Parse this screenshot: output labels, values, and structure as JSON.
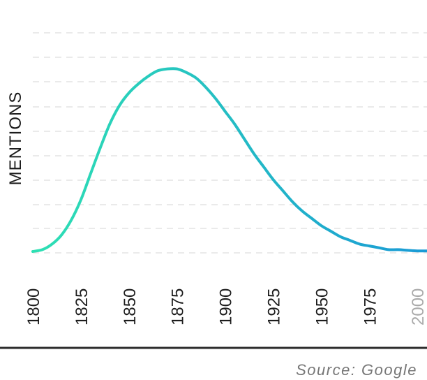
{
  "chart_data": {
    "type": "line",
    "ylabel": "MENTIONS",
    "xlabel": "",
    "source": "Source: Google",
    "xlim": [
      1800,
      2005
    ],
    "ylim": [
      0,
      100
    ],
    "x_ticks": [
      1800,
      1825,
      1850,
      1875,
      1900,
      1925,
      1950,
      1975,
      2000
    ],
    "muted_ticks": [
      2000
    ],
    "grid": true,
    "series": [
      {
        "x": [
          1800,
          1805,
          1810,
          1815,
          1820,
          1825,
          1830,
          1835,
          1840,
          1845,
          1850,
          1855,
          1860,
          1865,
          1870,
          1875,
          1880,
          1885,
          1890,
          1895,
          1900,
          1905,
          1910,
          1915,
          1920,
          1925,
          1930,
          1935,
          1940,
          1945,
          1950,
          1955,
          1960,
          1965,
          1970,
          1975,
          1980,
          1985,
          1990,
          1995,
          2000,
          2005
        ],
        "values": [
          0,
          1,
          4,
          9,
          17,
          28,
          42,
          56,
          69,
          79,
          86,
          91,
          95,
          98,
          99,
          99,
          97,
          94,
          89,
          83,
          76,
          69,
          61,
          53,
          46,
          39,
          33,
          27,
          22,
          18,
          14,
          11,
          8,
          6,
          4,
          3,
          2,
          1,
          1,
          0.6,
          0.3,
          0.3
        ]
      }
    ],
    "colors": {
      "line_start": "#2ee0b3",
      "line_end": "#1a9ad6",
      "grid": "#e3e3e3",
      "baseline": "#2b2b2b"
    }
  }
}
